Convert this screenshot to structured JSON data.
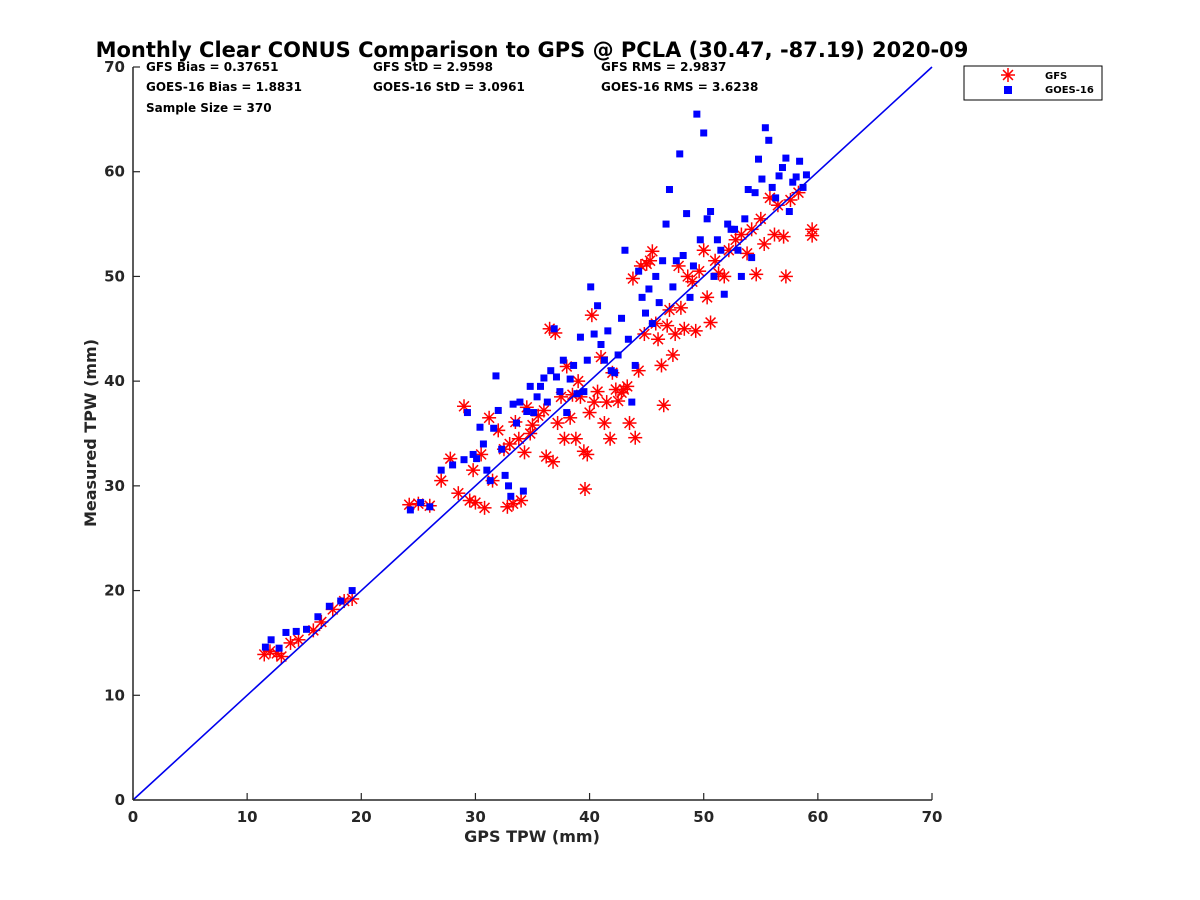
{
  "chart_data": {
    "type": "scatter",
    "title": "Monthly Clear CONUS Comparison to GPS @ PCLA (30.47, -87.19) 2020-09",
    "xlabel": "GPS TPW (mm)",
    "ylabel": "Measured TPW (mm)",
    "xlim": [
      0,
      70
    ],
    "ylim": [
      0,
      70
    ],
    "xticks": [
      "0",
      "10",
      "20",
      "30",
      "40",
      "50",
      "60",
      "70"
    ],
    "yticks": [
      "0",
      "10",
      "20",
      "30",
      "40",
      "50",
      "60",
      "70"
    ],
    "grid": false,
    "legend_position": "outside-top-right",
    "stats": [
      {
        "text": "GFS Bias = 0.37651"
      },
      {
        "text": "GFS StD = 2.9598"
      },
      {
        "text": "GFS RMS = 2.9837"
      },
      {
        "text": "GOES-16 Bias = 1.8831"
      },
      {
        "text": "GOES-16 StD = 3.0961"
      },
      {
        "text": "GOES-16 RMS = 3.6238"
      },
      {
        "text": "Sample Size = 370"
      }
    ],
    "reference_line": {
      "x": [
        0,
        70
      ],
      "y": [
        0,
        70
      ],
      "color": "#0000ee"
    },
    "series": [
      {
        "name": "GFS",
        "marker": "asterisk",
        "color": "#ff0000",
        "points": [
          [
            11.5,
            13.9
          ],
          [
            12.0,
            14.2
          ],
          [
            12.6,
            14.0
          ],
          [
            13.0,
            13.7
          ],
          [
            13.8,
            15.0
          ],
          [
            14.5,
            15.3
          ],
          [
            15.8,
            16.2
          ],
          [
            16.5,
            17.0
          ],
          [
            17.5,
            18.2
          ],
          [
            18.5,
            19.0
          ],
          [
            19.2,
            19.2
          ],
          [
            24.2,
            28.2
          ],
          [
            25.0,
            28.3
          ],
          [
            26.0,
            28.1
          ],
          [
            27.0,
            30.5
          ],
          [
            27.8,
            32.6
          ],
          [
            28.5,
            29.3
          ],
          [
            29.0,
            37.6
          ],
          [
            29.5,
            28.6
          ],
          [
            29.8,
            31.5
          ],
          [
            30.0,
            28.4
          ],
          [
            30.5,
            33.0
          ],
          [
            30.8,
            27.9
          ],
          [
            31.2,
            36.5
          ],
          [
            31.5,
            30.5
          ],
          [
            32.0,
            35.3
          ],
          [
            32.5,
            33.5
          ],
          [
            32.8,
            28.0
          ],
          [
            33.0,
            34.0
          ],
          [
            33.3,
            28.3
          ],
          [
            33.5,
            36.1
          ],
          [
            33.8,
            34.5
          ],
          [
            34.0,
            28.6
          ],
          [
            34.3,
            33.2
          ],
          [
            34.5,
            37.5
          ],
          [
            34.8,
            35.0
          ],
          [
            35.0,
            35.8
          ],
          [
            35.5,
            36.7
          ],
          [
            36.0,
            37.2
          ],
          [
            36.2,
            32.8
          ],
          [
            36.5,
            45.0
          ],
          [
            36.8,
            32.3
          ],
          [
            37.0,
            44.6
          ],
          [
            37.2,
            36.0
          ],
          [
            37.5,
            38.5
          ],
          [
            37.8,
            34.5
          ],
          [
            38.0,
            41.4
          ],
          [
            38.3,
            36.5
          ],
          [
            38.5,
            38.7
          ],
          [
            38.8,
            34.5
          ],
          [
            39.0,
            40.0
          ],
          [
            39.2,
            38.5
          ],
          [
            39.5,
            33.3
          ],
          [
            39.6,
            29.7
          ],
          [
            39.8,
            33.0
          ],
          [
            40.0,
            37.0
          ],
          [
            40.2,
            46.3
          ],
          [
            40.4,
            38.0
          ],
          [
            40.7,
            39.0
          ],
          [
            41.0,
            42.3
          ],
          [
            41.3,
            36.0
          ],
          [
            41.5,
            38.0
          ],
          [
            41.8,
            34.5
          ],
          [
            42.0,
            40.8
          ],
          [
            42.3,
            39.2
          ],
          [
            42.5,
            38.1
          ],
          [
            42.8,
            38.9
          ],
          [
            43.0,
            39.2
          ],
          [
            43.3,
            39.5
          ],
          [
            43.5,
            36.0
          ],
          [
            43.8,
            49.8
          ],
          [
            44.0,
            34.6
          ],
          [
            44.3,
            41.0
          ],
          [
            44.5,
            51.0
          ],
          [
            44.8,
            44.5
          ],
          [
            45.0,
            51.2
          ],
          [
            45.3,
            51.5
          ],
          [
            45.5,
            52.4
          ],
          [
            45.8,
            45.5
          ],
          [
            46.0,
            44.0
          ],
          [
            46.3,
            41.5
          ],
          [
            46.5,
            37.7
          ],
          [
            46.8,
            45.3
          ],
          [
            47.0,
            46.8
          ],
          [
            47.3,
            42.5
          ],
          [
            47.5,
            44.5
          ],
          [
            47.8,
            51.0
          ],
          [
            48.0,
            47.0
          ],
          [
            48.3,
            45.0
          ],
          [
            48.6,
            50.0
          ],
          [
            49.0,
            49.5
          ],
          [
            49.3,
            44.8
          ],
          [
            49.6,
            50.5
          ],
          [
            50.0,
            52.5
          ],
          [
            50.3,
            48.0
          ],
          [
            50.6,
            45.6
          ],
          [
            51.0,
            51.5
          ],
          [
            51.3,
            50.3
          ],
          [
            51.8,
            50.0
          ],
          [
            52.2,
            52.5
          ],
          [
            52.8,
            53.5
          ],
          [
            53.3,
            54.0
          ],
          [
            53.8,
            52.2
          ],
          [
            54.2,
            54.5
          ],
          [
            54.6,
            50.2
          ],
          [
            55.0,
            55.5
          ],
          [
            55.3,
            53.1
          ],
          [
            55.8,
            57.5
          ],
          [
            56.2,
            54.0
          ],
          [
            56.5,
            56.8
          ],
          [
            57.0,
            53.8
          ],
          [
            57.2,
            50.0
          ],
          [
            57.6,
            57.3
          ],
          [
            58.3,
            58.0
          ],
          [
            59.5,
            53.9
          ],
          [
            59.5,
            54.5
          ]
        ]
      },
      {
        "name": "GOES-16",
        "marker": "square",
        "color": "#0000ff",
        "points": [
          [
            11.6,
            14.6
          ],
          [
            12.1,
            15.3
          ],
          [
            12.8,
            14.5
          ],
          [
            13.4,
            16.0
          ],
          [
            14.3,
            16.1
          ],
          [
            15.2,
            16.3
          ],
          [
            16.2,
            17.5
          ],
          [
            17.2,
            18.5
          ],
          [
            18.2,
            19.0
          ],
          [
            19.2,
            20.0
          ],
          [
            24.3,
            27.7
          ],
          [
            25.2,
            28.4
          ],
          [
            26.0,
            28.0
          ],
          [
            27.0,
            31.5
          ],
          [
            28.0,
            32.0
          ],
          [
            29.0,
            32.5
          ],
          [
            29.3,
            37.0
          ],
          [
            29.8,
            33.0
          ],
          [
            30.1,
            32.6
          ],
          [
            30.4,
            35.6
          ],
          [
            30.7,
            34.0
          ],
          [
            31.0,
            31.5
          ],
          [
            31.3,
            30.5
          ],
          [
            31.6,
            35.5
          ],
          [
            31.8,
            40.5
          ],
          [
            32.0,
            37.2
          ],
          [
            32.3,
            33.5
          ],
          [
            32.6,
            31.0
          ],
          [
            32.9,
            30.0
          ],
          [
            33.1,
            29.0
          ],
          [
            33.3,
            37.8
          ],
          [
            33.6,
            36.0
          ],
          [
            33.9,
            38.0
          ],
          [
            34.2,
            29.5
          ],
          [
            34.5,
            37.1
          ],
          [
            34.8,
            39.5
          ],
          [
            35.1,
            37.0
          ],
          [
            35.4,
            38.5
          ],
          [
            35.7,
            39.5
          ],
          [
            36.0,
            40.3
          ],
          [
            36.3,
            38.0
          ],
          [
            36.6,
            41.0
          ],
          [
            36.9,
            45.0
          ],
          [
            37.1,
            40.4
          ],
          [
            37.4,
            39.0
          ],
          [
            37.7,
            42.0
          ],
          [
            38.0,
            37.0
          ],
          [
            38.3,
            40.2
          ],
          [
            38.6,
            41.5
          ],
          [
            38.9,
            38.8
          ],
          [
            39.2,
            44.2
          ],
          [
            39.5,
            39.0
          ],
          [
            39.8,
            42.0
          ],
          [
            40.1,
            49.0
          ],
          [
            40.4,
            44.5
          ],
          [
            40.7,
            47.2
          ],
          [
            41.0,
            43.5
          ],
          [
            41.3,
            42.0
          ],
          [
            41.6,
            44.8
          ],
          [
            41.9,
            41.0
          ],
          [
            42.2,
            40.8
          ],
          [
            42.5,
            42.5
          ],
          [
            42.8,
            46.0
          ],
          [
            43.1,
            52.5
          ],
          [
            43.4,
            44.0
          ],
          [
            43.7,
            38.0
          ],
          [
            44.0,
            41.5
          ],
          [
            44.3,
            50.5
          ],
          [
            44.6,
            48.0
          ],
          [
            44.9,
            46.5
          ],
          [
            45.2,
            48.8
          ],
          [
            45.5,
            45.5
          ],
          [
            45.8,
            50.0
          ],
          [
            46.1,
            47.5
          ],
          [
            46.4,
            51.5
          ],
          [
            46.7,
            55.0
          ],
          [
            47.0,
            58.3
          ],
          [
            47.3,
            49.0
          ],
          [
            47.6,
            51.5
          ],
          [
            47.9,
            61.7
          ],
          [
            48.2,
            52.0
          ],
          [
            48.5,
            56.0
          ],
          [
            48.8,
            48.0
          ],
          [
            49.1,
            51.0
          ],
          [
            49.4,
            65.5
          ],
          [
            49.7,
            53.5
          ],
          [
            50.0,
            63.7
          ],
          [
            50.3,
            55.5
          ],
          [
            50.6,
            56.2
          ],
          [
            50.9,
            50.0
          ],
          [
            51.2,
            53.5
          ],
          [
            51.5,
            52.5
          ],
          [
            51.8,
            48.3
          ],
          [
            52.1,
            55.0
          ],
          [
            52.4,
            54.5
          ],
          [
            52.7,
            54.5
          ],
          [
            53.0,
            52.5
          ],
          [
            53.3,
            50.0
          ],
          [
            53.6,
            55.5
          ],
          [
            53.9,
            58.3
          ],
          [
            54.2,
            51.8
          ],
          [
            54.5,
            58.0
          ],
          [
            54.8,
            61.2
          ],
          [
            55.1,
            59.3
          ],
          [
            55.4,
            64.2
          ],
          [
            55.7,
            63.0
          ],
          [
            56.0,
            58.5
          ],
          [
            56.3,
            57.5
          ],
          [
            56.6,
            59.6
          ],
          [
            56.9,
            60.4
          ],
          [
            57.2,
            61.3
          ],
          [
            57.5,
            56.2
          ],
          [
            57.8,
            59.0
          ],
          [
            58.1,
            59.5
          ],
          [
            58.4,
            61.0
          ],
          [
            58.7,
            58.5
          ],
          [
            59.0,
            59.7
          ]
        ]
      }
    ]
  }
}
